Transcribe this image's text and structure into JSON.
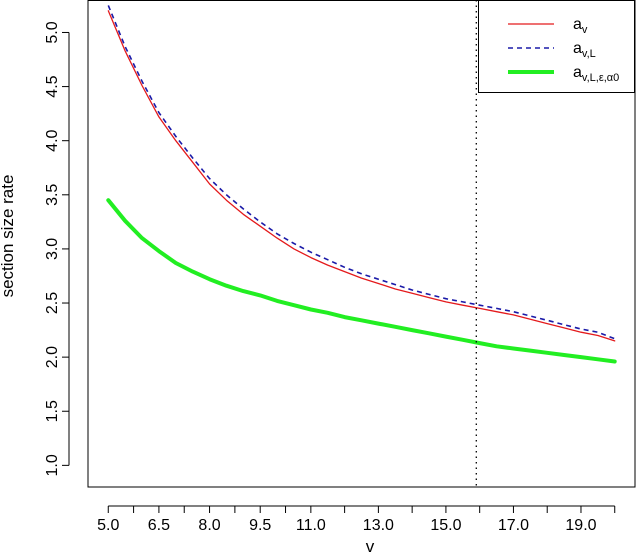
{
  "chart_data": {
    "type": "line",
    "title": "",
    "xlabel": "v",
    "ylabel": "section size rate",
    "xlim": [
      4.4,
      20.6
    ],
    "ylim": [
      0.8,
      5.3
    ],
    "x_ticks": [
      5,
      5.75,
      6.5,
      7.25,
      8,
      8.75,
      9.5,
      10.25,
      11,
      12,
      13,
      14,
      15,
      16,
      17,
      18,
      19,
      20
    ],
    "x_tick_labels": [
      "5.0",
      "",
      "6.5",
      "",
      "8.0",
      "",
      "9.5",
      "",
      "11.0",
      "",
      "13.0",
      "",
      "15.0",
      "",
      "17.0",
      "",
      "19.0",
      ""
    ],
    "y_ticks": [
      1.0,
      1.5,
      2.0,
      2.5,
      3.0,
      3.5,
      4.0,
      4.5,
      5.0
    ],
    "y_tick_labels": [
      "1.0",
      "1.5",
      "2.0",
      "2.5",
      "3.0",
      "3.5",
      "4.0",
      "4.5",
      "5.0"
    ],
    "vline_x": 15.9,
    "grid": false,
    "legend_position": "top-right",
    "x": [
      5,
      5.5,
      6,
      6.5,
      7,
      7.5,
      8,
      8.5,
      9,
      9.5,
      10,
      10.5,
      11,
      11.5,
      12,
      12.5,
      13,
      13.5,
      14,
      14.5,
      15,
      15.5,
      16,
      16.5,
      17,
      17.5,
      18,
      18.5,
      19,
      19.5,
      20
    ],
    "series": [
      {
        "name": "a_v",
        "legend_main": "a",
        "legend_sub": "v",
        "color": "#e41a1c",
        "dash": "solid",
        "width": 1.3,
        "values": [
          5.2,
          4.83,
          4.51,
          4.22,
          4.0,
          3.8,
          3.6,
          3.45,
          3.32,
          3.21,
          3.1,
          3.0,
          2.92,
          2.85,
          2.79,
          2.73,
          2.68,
          2.63,
          2.59,
          2.55,
          2.51,
          2.48,
          2.45,
          2.42,
          2.39,
          2.35,
          2.31,
          2.27,
          2.23,
          2.2,
          2.15
        ]
      },
      {
        "name": "a_v,L",
        "legend_main": "a",
        "legend_sub": "v,L",
        "color": "#1a1aa8",
        "dash": "5,4",
        "width": 1.6,
        "values": [
          5.25,
          4.87,
          4.55,
          4.26,
          4.04,
          3.84,
          3.65,
          3.5,
          3.37,
          3.25,
          3.14,
          3.05,
          2.97,
          2.9,
          2.83,
          2.77,
          2.72,
          2.67,
          2.62,
          2.58,
          2.54,
          2.51,
          2.48,
          2.45,
          2.42,
          2.38,
          2.34,
          2.3,
          2.26,
          2.23,
          2.17
        ]
      },
      {
        "name": "a_v,L,ε,α0",
        "legend_main": "a",
        "legend_sub": "v,L,ε,α0",
        "color": "#22ee22",
        "dash": "solid",
        "width": 4,
        "values": [
          3.45,
          3.26,
          3.1,
          2.98,
          2.87,
          2.79,
          2.72,
          2.66,
          2.61,
          2.57,
          2.52,
          2.48,
          2.44,
          2.41,
          2.37,
          2.34,
          2.31,
          2.28,
          2.25,
          2.22,
          2.19,
          2.16,
          2.13,
          2.1,
          2.08,
          2.06,
          2.04,
          2.02,
          2.0,
          1.98,
          1.96
        ]
      }
    ]
  }
}
